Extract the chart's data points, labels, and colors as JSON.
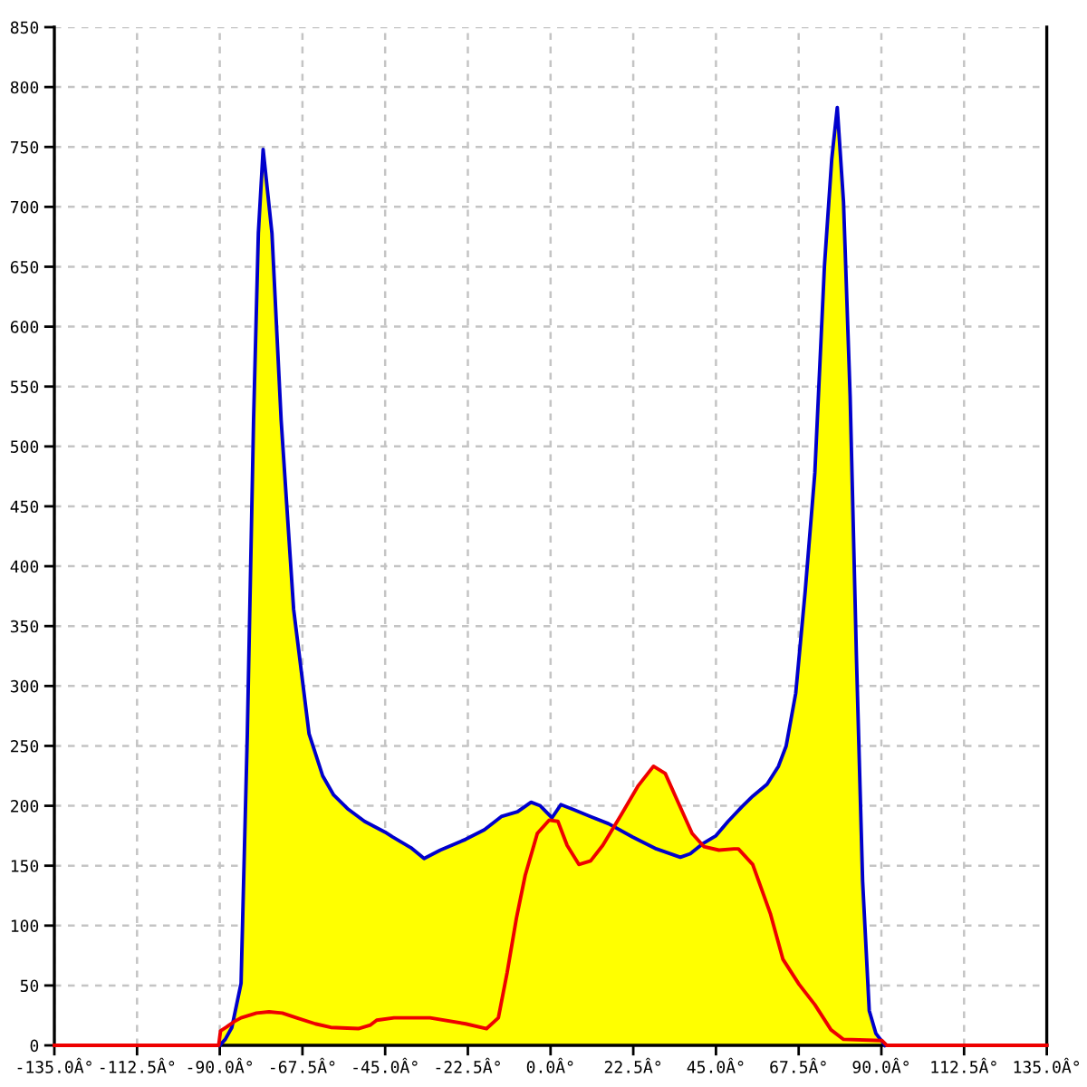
{
  "chart_data": {
    "type": "line",
    "xlim": [
      -135,
      135
    ],
    "xticks": [
      {
        "value": -135,
        "label": "-135.0Â°"
      },
      {
        "value": -112.5,
        "label": "-112.5Â°"
      },
      {
        "value": -90,
        "label": "-90.0Â°"
      },
      {
        "value": -67.5,
        "label": "-67.5Â°"
      },
      {
        "value": -45,
        "label": "-45.0Â°"
      },
      {
        "value": -22.5,
        "label": "-22.5Â°"
      },
      {
        "value": 0,
        "label": "0.0Â°"
      },
      {
        "value": 22.5,
        "label": "22.5Â°"
      },
      {
        "value": 45,
        "label": "45.0Â°"
      },
      {
        "value": 67.5,
        "label": "67.5Â°"
      },
      {
        "value": 90,
        "label": "90.0Â°"
      },
      {
        "value": 112.5,
        "label": "112.5Â°"
      },
      {
        "value": 135,
        "label": "135.0Â°"
      }
    ],
    "ylim": [
      0,
      850
    ],
    "yticks": [
      0,
      50,
      100,
      150,
      200,
      250,
      300,
      350,
      400,
      450,
      500,
      550,
      600,
      650,
      700,
      750,
      800,
      850
    ],
    "grid": true,
    "series": [
      {
        "type": "area",
        "color": "#ffff00",
        "x": [
          -90.3,
          -89.8,
          -88.3,
          -86.2,
          -84.2,
          -82.5,
          -80.8,
          -79.5,
          -78.2,
          -75.8,
          -73.3,
          -69.9,
          -65.7,
          -62,
          -59,
          -55,
          -50.6,
          -45,
          -43,
          -38,
          -34.4,
          -30,
          -23.1,
          -18,
          -13.4,
          -9,
          -5.3,
          -2.8,
          0.4,
          2.8,
          6.1,
          10.9,
          15.8,
          17.5,
          19.1,
          23.9,
          28,
          31.2,
          34.4,
          38.5,
          41,
          41.7,
          45,
          48.3,
          52,
          55,
          58.9,
          62,
          64.1,
          66.7,
          69.3,
          71.9,
          74.5,
          76.5,
          78,
          79.7,
          81.5,
          83.2,
          84.9,
          86.7,
          88.5,
          89.7,
          90.2,
          91.5
        ],
        "values": [
          0,
          12,
          15,
          20,
          52,
          260,
          522,
          678,
          748,
          678,
          522,
          364,
          260,
          225,
          209,
          197,
          187,
          178,
          174,
          165,
          156,
          163,
          172,
          180,
          191,
          195,
          203,
          200,
          190,
          201,
          197,
          191,
          185,
          183,
          192,
          217,
          233,
          227,
          205,
          177,
          168,
          169,
          175,
          187,
          199,
          208,
          218,
          233,
          250,
          294,
          380,
          478,
          650,
          740,
          783,
          704,
          542,
          326,
          137,
          29,
          10,
          5,
          4,
          0
        ]
      },
      {
        "color": "#0000cc",
        "x": [
          -90,
          -88.5,
          -86.7,
          -84.2,
          -82.5,
          -80.8,
          -79.5,
          -78.2,
          -75.8,
          -73.3,
          -69.9,
          -65.7,
          -62,
          -59,
          -55,
          -50.6,
          -45,
          -43,
          -38,
          -34.4,
          -30,
          -23.1,
          -18,
          -13.4,
          -9,
          -5.3,
          -2.8,
          0.4,
          2.8,
          6.1,
          10.9,
          15.8,
          22.3,
          28.8,
          35.3,
          38,
          41.7,
          45,
          48.3,
          52,
          55,
          58.9,
          62,
          64.1,
          66.7,
          69.3,
          71.9,
          74.5,
          76.5,
          78,
          79.7,
          81.5,
          83.2,
          84.9,
          86.7,
          88.5,
          90.5,
          91
        ],
        "values": [
          0,
          5,
          15,
          52,
          260,
          522,
          678,
          748,
          678,
          522,
          364,
          260,
          225,
          209,
          197,
          187,
          178,
          174,
          165,
          156,
          163,
          172,
          180,
          191,
          195,
          203,
          200,
          190,
          201,
          197,
          191,
          185,
          174,
          164,
          157,
          160,
          169,
          175,
          187,
          199,
          208,
          218,
          233,
          250,
          294,
          380,
          478,
          650,
          740,
          783,
          704,
          542,
          326,
          137,
          29,
          10,
          2,
          0
        ]
      },
      {
        "color": "#ee0000",
        "x": [
          -135,
          -90.3,
          -89.8,
          -88.3,
          -86,
          -84.2,
          -80,
          -76.6,
          -73,
          -69.1,
          -64,
          -59.8,
          -52.3,
          -49,
          -47.3,
          -42.6,
          -32.8,
          -23.1,
          -17.4,
          -14.2,
          -11.8,
          -9.3,
          -6.9,
          -3.6,
          -0.4,
          2,
          4.5,
          7.7,
          10.9,
          14.2,
          19.1,
          23.9,
          28,
          31.2,
          34.4,
          38.5,
          41.7,
          45.8,
          49.9,
          51.1,
          55,
          59.8,
          63.2,
          67.6,
          71.9,
          76.3,
          79.7,
          90.2,
          91.5,
          135
        ],
        "values": [
          0,
          0,
          12,
          15,
          20,
          23,
          27,
          28,
          27,
          23,
          18,
          15,
          14,
          17,
          21,
          23,
          23,
          18,
          14,
          23,
          61,
          106,
          142,
          177,
          188,
          187,
          167,
          151,
          154,
          167,
          192,
          217,
          233,
          227,
          205,
          177,
          166,
          163,
          164,
          164,
          151,
          110,
          72,
          51,
          34,
          13,
          5,
          4,
          0,
          0
        ]
      }
    ]
  }
}
